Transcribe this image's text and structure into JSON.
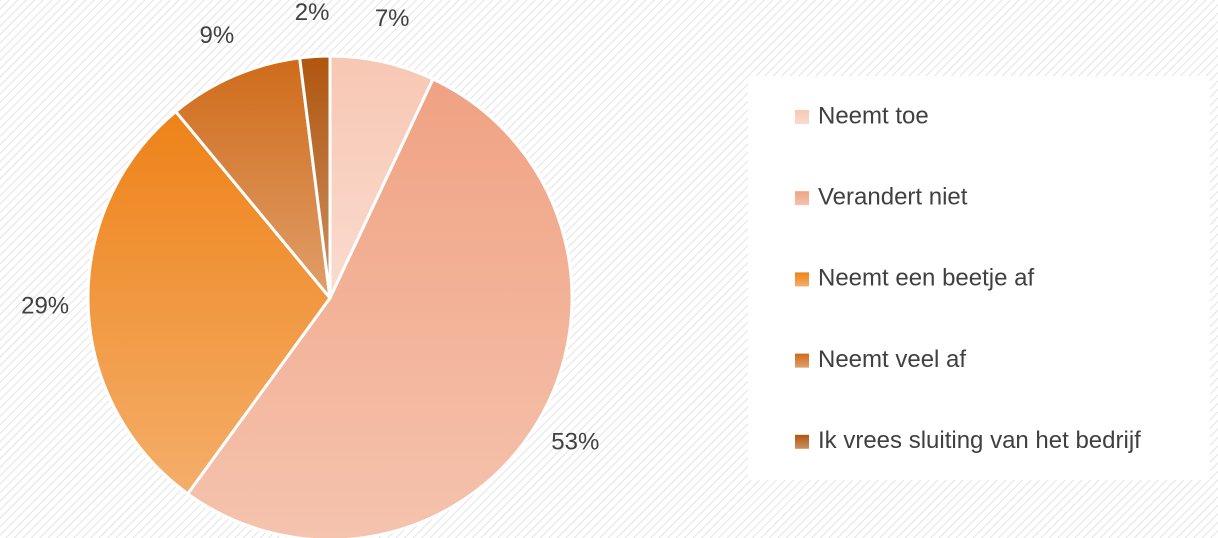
{
  "chart_data": {
    "type": "pie",
    "categories": [
      "Neemt toe",
      "Verandert niet",
      "Neemt een beetje af",
      "Neemt veel af",
      "Ik vrees sluiting van het bedrijf"
    ],
    "values": [
      7,
      53,
      29,
      9,
      2
    ],
    "value_labels": [
      "7%",
      "53%",
      "29%",
      "9%",
      "2%"
    ],
    "colors": [
      "#f7c7b3",
      "#f0a283",
      "#ee8218",
      "#cf6b1a",
      "#b0560f"
    ],
    "legend": "right"
  }
}
